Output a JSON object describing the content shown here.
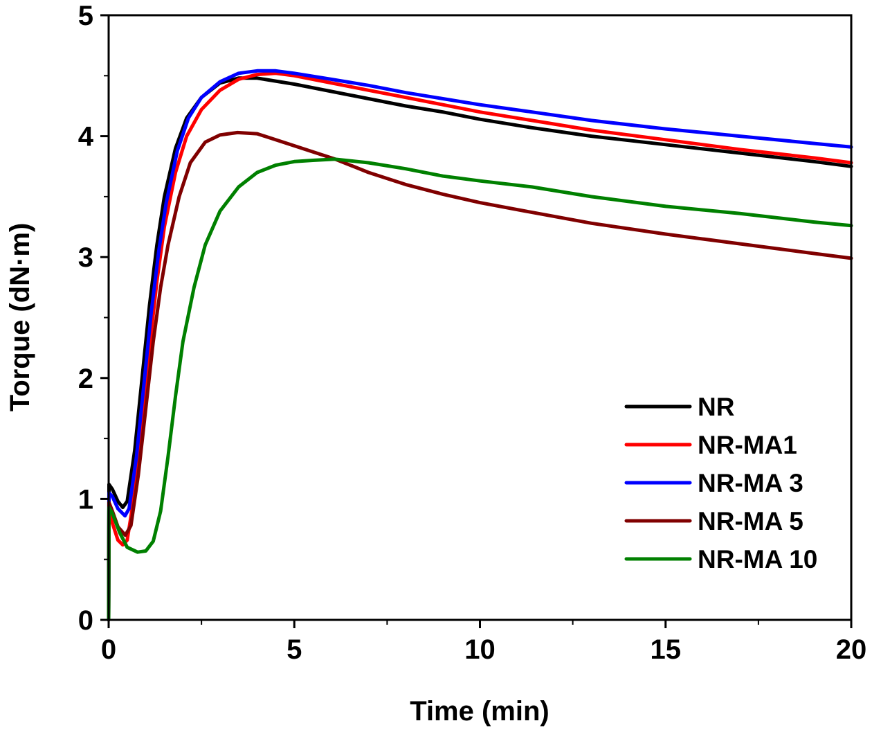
{
  "chart_data": {
    "type": "line",
    "title": "",
    "xlabel": "Time (min)",
    "ylabel": "Torque (dN·m)",
    "xlim": [
      0,
      20
    ],
    "ylim": [
      0,
      5
    ],
    "x_ticks": [
      0,
      5,
      10,
      15,
      20
    ],
    "x_tick_labels": [
      "0",
      "5",
      "10",
      "15",
      "20"
    ],
    "x_minor_ticks": [
      2.5,
      7.5,
      12.5,
      17.5
    ],
    "y_ticks": [
      0,
      1,
      2,
      3,
      4,
      5
    ],
    "y_tick_labels": [
      "0",
      "1",
      "2",
      "3",
      "4",
      "5"
    ],
    "y_minor_ticks": [
      0.5,
      1.5,
      2.5,
      3.5,
      4.5
    ],
    "grid": false,
    "legend_position": "bottom-right",
    "series": [
      {
        "name": "NR",
        "color": "#000000",
        "points": [
          [
            0,
            0
          ],
          [
            0.01,
            1.12
          ],
          [
            0.1,
            1.08
          ],
          [
            0.25,
            0.98
          ],
          [
            0.38,
            0.93
          ],
          [
            0.5,
            0.98
          ],
          [
            0.7,
            1.4
          ],
          [
            0.9,
            2.0
          ],
          [
            1.1,
            2.6
          ],
          [
            1.3,
            3.1
          ],
          [
            1.5,
            3.5
          ],
          [
            1.8,
            3.9
          ],
          [
            2.1,
            4.15
          ],
          [
            2.5,
            4.32
          ],
          [
            3.0,
            4.44
          ],
          [
            3.5,
            4.48
          ],
          [
            4.0,
            4.48
          ],
          [
            5.0,
            4.43
          ],
          [
            6.0,
            4.37
          ],
          [
            7.0,
            4.31
          ],
          [
            8.0,
            4.25
          ],
          [
            9.0,
            4.2
          ],
          [
            10.0,
            4.14
          ],
          [
            11.4,
            4.07
          ],
          [
            13.0,
            4.0
          ],
          [
            15.0,
            3.93
          ],
          [
            17.0,
            3.86
          ],
          [
            19.0,
            3.79
          ],
          [
            20.0,
            3.75
          ]
        ]
      },
      {
        "name": "NR-MA1",
        "color": "#ff0000",
        "points": [
          [
            0,
            0
          ],
          [
            0.01,
            0.95
          ],
          [
            0.1,
            0.8
          ],
          [
            0.25,
            0.66
          ],
          [
            0.38,
            0.62
          ],
          [
            0.5,
            0.66
          ],
          [
            0.7,
            1.05
          ],
          [
            0.9,
            1.65
          ],
          [
            1.1,
            2.25
          ],
          [
            1.3,
            2.8
          ],
          [
            1.5,
            3.25
          ],
          [
            1.8,
            3.7
          ],
          [
            2.1,
            4.0
          ],
          [
            2.5,
            4.22
          ],
          [
            3.0,
            4.38
          ],
          [
            3.5,
            4.47
          ],
          [
            4.0,
            4.51
          ],
          [
            4.5,
            4.52
          ],
          [
            5.0,
            4.5
          ],
          [
            6.0,
            4.44
          ],
          [
            7.0,
            4.38
          ],
          [
            8.0,
            4.32
          ],
          [
            9.0,
            4.26
          ],
          [
            10.0,
            4.2
          ],
          [
            11.4,
            4.13
          ],
          [
            13.0,
            4.05
          ],
          [
            15.0,
            3.97
          ],
          [
            17.0,
            3.89
          ],
          [
            19.0,
            3.82
          ],
          [
            20.0,
            3.78
          ]
        ]
      },
      {
        "name": "NR-MA 3",
        "color": "#0000ff",
        "points": [
          [
            0,
            0
          ],
          [
            0.01,
            1.05
          ],
          [
            0.1,
            1.02
          ],
          [
            0.25,
            0.92
          ],
          [
            0.44,
            0.86
          ],
          [
            0.55,
            0.92
          ],
          [
            0.75,
            1.35
          ],
          [
            0.95,
            1.95
          ],
          [
            1.15,
            2.55
          ],
          [
            1.35,
            3.05
          ],
          [
            1.55,
            3.45
          ],
          [
            1.85,
            3.88
          ],
          [
            2.15,
            4.15
          ],
          [
            2.5,
            4.32
          ],
          [
            3.0,
            4.45
          ],
          [
            3.5,
            4.52
          ],
          [
            4.0,
            4.54
          ],
          [
            4.5,
            4.54
          ],
          [
            5.0,
            4.52
          ],
          [
            6.0,
            4.47
          ],
          [
            7.0,
            4.42
          ],
          [
            8.0,
            4.36
          ],
          [
            9.0,
            4.31
          ],
          [
            10.0,
            4.26
          ],
          [
            11.4,
            4.2
          ],
          [
            13.0,
            4.13
          ],
          [
            15.0,
            4.06
          ],
          [
            17.0,
            4.0
          ],
          [
            19.0,
            3.94
          ],
          [
            20.0,
            3.91
          ]
        ]
      },
      {
        "name": "NR-MA 5",
        "color": "#800000",
        "points": [
          [
            0,
            0
          ],
          [
            0.01,
            0.97
          ],
          [
            0.1,
            0.9
          ],
          [
            0.25,
            0.77
          ],
          [
            0.45,
            0.7
          ],
          [
            0.6,
            0.78
          ],
          [
            0.8,
            1.2
          ],
          [
            1.0,
            1.75
          ],
          [
            1.2,
            2.3
          ],
          [
            1.4,
            2.75
          ],
          [
            1.6,
            3.1
          ],
          [
            1.9,
            3.5
          ],
          [
            2.2,
            3.78
          ],
          [
            2.6,
            3.95
          ],
          [
            3.0,
            4.01
          ],
          [
            3.47,
            4.03
          ],
          [
            4.0,
            4.02
          ],
          [
            4.9,
            3.93
          ],
          [
            5.5,
            3.87
          ],
          [
            6.1,
            3.81
          ],
          [
            7.0,
            3.7
          ],
          [
            8.0,
            3.6
          ],
          [
            9.0,
            3.52
          ],
          [
            10.0,
            3.45
          ],
          [
            11.4,
            3.37
          ],
          [
            13.0,
            3.28
          ],
          [
            15.0,
            3.19
          ],
          [
            17.0,
            3.11
          ],
          [
            19.0,
            3.03
          ],
          [
            20.0,
            2.99
          ]
        ]
      },
      {
        "name": "NR-MA 10",
        "color": "#008000",
        "points": [
          [
            0,
            0
          ],
          [
            0.01,
            0.93
          ],
          [
            0.1,
            0.88
          ],
          [
            0.3,
            0.72
          ],
          [
            0.5,
            0.6
          ],
          [
            0.78,
            0.56
          ],
          [
            1.0,
            0.57
          ],
          [
            1.2,
            0.65
          ],
          [
            1.4,
            0.9
          ],
          [
            1.6,
            1.35
          ],
          [
            1.8,
            1.85
          ],
          [
            2.0,
            2.3
          ],
          [
            2.3,
            2.75
          ],
          [
            2.6,
            3.1
          ],
          [
            3.0,
            3.38
          ],
          [
            3.5,
            3.58
          ],
          [
            4.0,
            3.7
          ],
          [
            4.5,
            3.76
          ],
          [
            5.0,
            3.79
          ],
          [
            5.5,
            3.8
          ],
          [
            6.1,
            3.81
          ],
          [
            7.0,
            3.78
          ],
          [
            8.0,
            3.73
          ],
          [
            9.0,
            3.67
          ],
          [
            10.0,
            3.63
          ],
          [
            11.4,
            3.58
          ],
          [
            13.0,
            3.5
          ],
          [
            15.0,
            3.42
          ],
          [
            17.0,
            3.36
          ],
          [
            19.0,
            3.29
          ],
          [
            20.0,
            3.26
          ]
        ]
      }
    ]
  }
}
